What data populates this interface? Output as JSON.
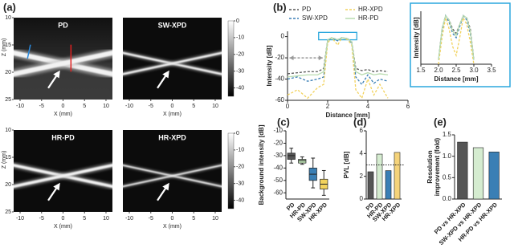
{
  "figure_a": {
    "label": "(a)",
    "xlabel": "X (mm)",
    "ylabel": "Z (mm)",
    "xlim": [
      -11.5,
      11.5
    ],
    "xticks": [
      -10,
      -5,
      0,
      5,
      10
    ],
    "ylim": [
      10,
      25
    ],
    "yticks": [
      10,
      15,
      20,
      25
    ],
    "colorbar_lim": [
      0,
      -45
    ],
    "colorbar_ticks": [
      0,
      -10,
      -20,
      -30,
      -40
    ],
    "panels": [
      {
        "title": "PD"
      },
      {
        "title": "SW-XPD"
      },
      {
        "title": "HR-PD"
      },
      {
        "title": "HR-XPD"
      }
    ]
  },
  "chart_data": [
    {
      "type": "line",
      "label": "(b)",
      "xlabel": "Distance [mm]",
      "ylabel": "Intensity [dB]",
      "x": [
        0,
        0.5,
        1,
        1.5,
        1.8,
        2.0,
        2.2,
        2.5,
        2.7,
        3.0,
        3.2,
        3.4,
        3.7,
        4.0,
        4.3,
        4.6,
        5.0
      ],
      "xlim": [
        0,
        6
      ],
      "xticks": [
        0,
        2,
        4,
        6
      ],
      "ylim": [
        -60,
        5
      ],
      "yticks": [
        -60,
        -40,
        -20,
        0
      ],
      "legend": "top",
      "series": [
        {
          "name": "PD",
          "color": "#555555",
          "dashed": true,
          "values": [
            -35,
            -34,
            -33,
            -33,
            -30,
            -3,
            -1,
            -3,
            -1,
            -2,
            -5,
            -30,
            -32,
            -31,
            -33,
            -32,
            -33
          ]
        },
        {
          "name": "SW-XPD",
          "color": "#3a7fb5",
          "dashed": true,
          "values": [
            -40,
            -38,
            -42,
            -40,
            -38,
            -4,
            -1,
            -4,
            -1,
            -2,
            -6,
            -38,
            -45,
            -36,
            -44,
            -40,
            -42
          ]
        },
        {
          "name": "HR-XPD",
          "color": "#f2d25c",
          "dashed": true,
          "values": [
            -55,
            -50,
            -58,
            -48,
            -45,
            -6,
            -1,
            -8,
            -1,
            -3,
            -8,
            -50,
            -58,
            -40,
            -55,
            -45,
            -58
          ]
        },
        {
          "name": "HR-PD",
          "color": "#b9dcb0",
          "dashed": false,
          "values": [
            -38,
            -37,
            -36,
            -36,
            -33,
            -3,
            -1,
            -3,
            -1,
            -2,
            -5,
            -33,
            -36,
            -34,
            -36,
            -35,
            -36
          ]
        }
      ]
    },
    {
      "type": "line",
      "xlabel": "Distance [mm]",
      "ylabel": "Intensity [dB]",
      "x": [
        2.0,
        2.1,
        2.2,
        2.3,
        2.4,
        2.5,
        2.6,
        2.7,
        2.8,
        2.9,
        3.0
      ],
      "xlim": [
        1.5,
        3.5
      ],
      "xticks": [
        {
          "value": 1.5,
          "label": "1.5"
        },
        {
          "value": 2,
          "label": "2.0"
        },
        {
          "value": 2.5,
          "label": "2.5"
        },
        {
          "value": 3,
          "label": "3.0"
        },
        {
          "value": 3.5,
          "label": "3.5"
        }
      ],
      "ylim": [
        -12,
        0
      ],
      "series": [
        {
          "color": "#555555",
          "dashed": true,
          "values": [
            -11,
            -4,
            -1,
            -2,
            -4,
            -5,
            -3,
            -1,
            -1.5,
            -4,
            -11
          ]
        },
        {
          "color": "#3a7fb5",
          "dashed": true,
          "values": [
            -11,
            -4.5,
            -1,
            -2.5,
            -5,
            -6,
            -3.5,
            -1,
            -2,
            -5,
            -11
          ]
        },
        {
          "color": "#f2d25c",
          "dashed": true,
          "values": [
            -12,
            -6,
            -1.5,
            -4,
            -8,
            -10,
            -6,
            -1.5,
            -3,
            -7,
            -12
          ]
        },
        {
          "color": "#b9dcb0",
          "dashed": false,
          "values": [
            -11,
            -4,
            -1,
            -2,
            -4.5,
            -5.5,
            -3,
            -1,
            -1.5,
            -4.5,
            -11
          ]
        }
      ]
    },
    {
      "type": "box",
      "label": "(c)",
      "ylabel": "Background intensity [dB]",
      "categories": [
        "PD",
        "HR-PD",
        "SW-XPD",
        "HR-XPD"
      ],
      "colors": [
        "#555555",
        "#b9dcb0",
        "#3a7fb5",
        "#f2d25c"
      ],
      "ylim": [
        -65,
        -10
      ],
      "yticks": [
        -60,
        -50,
        -40,
        -30,
        -20,
        -10
      ],
      "boxes": [
        {
          "min": -36,
          "q1": -33,
          "median": -30,
          "q3": -28,
          "max": -24
        },
        {
          "min": -37,
          "q1": -36,
          "median": -34,
          "q3": -33,
          "max": -31
        },
        {
          "min": -56,
          "q1": -50,
          "median": -45,
          "q3": -40,
          "max": -32
        },
        {
          "min": -62,
          "q1": -57,
          "median": -53,
          "q3": -49,
          "max": -42
        }
      ]
    },
    {
      "type": "bar",
      "label": "(d)",
      "ylabel": "PVL [dB]",
      "categories": [
        "PD",
        "HR-PD",
        "SW-XPD",
        "HR-XPD"
      ],
      "values": [
        2.4,
        3.95,
        2.5,
        4.1
      ],
      "colors": [
        "#555555",
        "#d5ecd0",
        "#3a7fb5",
        "#f5d37a"
      ],
      "ylim": [
        0,
        6
      ],
      "yticks": [
        0,
        2,
        4,
        6
      ],
      "reference_line": 3
    },
    {
      "type": "bar",
      "label": "(e)",
      "ylabel": [
        "Resolution",
        "improvement (fold)"
      ],
      "categories": [
        "PD vs HR-XPD",
        "SW-XPD vs HR-XPD",
        "HR-PD vs HR-XPD"
      ],
      "values": [
        1.33,
        1.2,
        1.1
      ],
      "colors": [
        "#555555",
        "#d5ecd0",
        "#3a7fb5"
      ],
      "ylim": [
        0,
        1.5
      ],
      "yticks": [
        {
          "value": 0,
          "label": "0.0"
        },
        0.5,
        {
          "value": 1,
          "label": "1.0"
        },
        1.5
      ]
    }
  ]
}
